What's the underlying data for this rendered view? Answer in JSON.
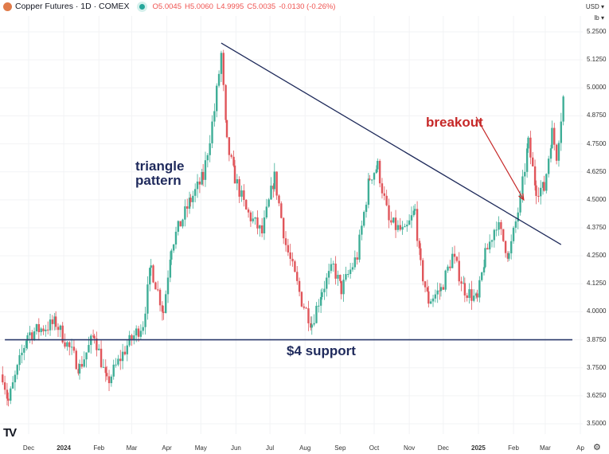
{
  "header": {
    "symbol": "Copper Futures · 1D · COMEX",
    "open": "O5.0045",
    "high": "H5.0060",
    "low": "L4.9995",
    "close": "C5.0035",
    "change": "-0.0130 (-0.26%)"
  },
  "units": {
    "currency": "USD ▾",
    "unit": "lb ▾"
  },
  "colors": {
    "up": "#3fae97",
    "down": "#e0555a",
    "trendline": "#1e2a5a",
    "support": "#2b3a6b",
    "annotation_blue": "#1f2a5c",
    "annotation_red": "#c62828"
  },
  "chart_data": {
    "type": "candlestick",
    "title": "Copper Futures · 1D · COMEX",
    "ylim": [
      3.5,
      5.25
    ],
    "y_ticks": [
      "5.2500",
      "5.1250",
      "5.0000",
      "4.8750",
      "4.7500",
      "4.6250",
      "4.5000",
      "4.3750",
      "4.2500",
      "4.1250",
      "4.0000",
      "3.8750",
      "3.7500",
      "3.6250",
      "3.5000"
    ],
    "x_ticks": [
      {
        "label": "Dec",
        "date": "2023-12-01"
      },
      {
        "label": "2024",
        "date": "2024-01-01",
        "year": true
      },
      {
        "label": "Feb",
        "date": "2024-02-01"
      },
      {
        "label": "Mar",
        "date": "2024-03-01"
      },
      {
        "label": "Apr",
        "date": "2024-04-01"
      },
      {
        "label": "May",
        "date": "2024-05-01"
      },
      {
        "label": "Jun",
        "date": "2024-06-01"
      },
      {
        "label": "Jul",
        "date": "2024-07-01"
      },
      {
        "label": "Aug",
        "date": "2024-08-01"
      },
      {
        "label": "Sep",
        "date": "2024-09-01"
      },
      {
        "label": "Oct",
        "date": "2024-10-01"
      },
      {
        "label": "Nov",
        "date": "2024-11-01"
      },
      {
        "label": "Dec",
        "date": "2024-12-01"
      },
      {
        "label": "2025",
        "date": "2025-01-01",
        "year": true
      },
      {
        "label": "Feb",
        "date": "2025-02-01"
      },
      {
        "label": "Mar",
        "date": "2025-03-01"
      },
      {
        "label": "Ap",
        "date": "2025-04-01"
      }
    ],
    "close_path": [
      [
        "2023-11-08",
        3.72
      ],
      [
        "2023-11-13",
        3.6
      ],
      [
        "2023-11-30",
        3.9
      ],
      [
        "2023-12-25",
        3.95
      ],
      [
        "2024-01-15",
        3.75
      ],
      [
        "2024-01-28",
        3.9
      ],
      [
        "2024-02-08",
        3.68
      ],
      [
        "2024-02-26",
        3.85
      ],
      [
        "2024-03-11",
        3.95
      ],
      [
        "2024-03-18",
        4.2
      ],
      [
        "2024-03-29",
        4.0
      ],
      [
        "2024-04-05",
        4.3
      ],
      [
        "2024-04-22",
        4.5
      ],
      [
        "2024-05-03",
        4.6
      ],
      [
        "2024-05-13",
        4.9
      ],
      [
        "2024-05-19",
        5.15
      ],
      [
        "2024-05-24",
        4.75
      ],
      [
        "2024-05-31",
        4.6
      ],
      [
        "2024-06-10",
        4.45
      ],
      [
        "2024-06-24",
        4.35
      ],
      [
        "2024-07-05",
        4.6
      ],
      [
        "2024-07-15",
        4.3
      ],
      [
        "2024-07-29",
        4.05
      ],
      [
        "2024-08-07",
        3.95
      ],
      [
        "2024-08-16",
        4.1
      ],
      [
        "2024-08-26",
        4.2
      ],
      [
        "2024-09-02",
        4.1
      ],
      [
        "2024-09-16",
        4.25
      ],
      [
        "2024-09-27",
        4.6
      ],
      [
        "2024-10-04",
        4.65
      ],
      [
        "2024-10-14",
        4.4
      ],
      [
        "2024-10-28",
        4.35
      ],
      [
        "2024-11-06",
        4.45
      ],
      [
        "2024-11-11",
        4.2
      ],
      [
        "2024-11-18",
        4.05
      ],
      [
        "2024-11-29",
        4.1
      ],
      [
        "2024-12-09",
        4.25
      ],
      [
        "2024-12-20",
        4.1
      ],
      [
        "2024-12-31",
        4.05
      ],
      [
        "2025-01-07",
        4.25
      ],
      [
        "2025-01-17",
        4.4
      ],
      [
        "2025-01-28",
        4.25
      ],
      [
        "2025-02-07",
        4.5
      ],
      [
        "2025-02-14",
        4.75
      ],
      [
        "2025-02-21",
        4.55
      ],
      [
        "2025-02-28",
        4.55
      ],
      [
        "2025-03-07",
        4.8
      ],
      [
        "2025-03-11",
        4.7
      ],
      [
        "2025-03-18",
        5.0
      ]
    ],
    "trendline": {
      "from": [
        "2024-05-19",
        5.2
      ],
      "to": [
        "2025-03-15",
        4.3
      ]
    },
    "support_line": {
      "price": 3.875,
      "from": "2023-11-10",
      "to": "2025-03-25"
    },
    "annotations": {
      "triangle": "triangle\npattern",
      "support": "$4 support",
      "breakout": "breakout"
    },
    "breakout_arrow": {
      "from": [
        "2024-12-30",
        4.87
      ],
      "to": [
        "2025-02-10",
        4.5
      ]
    }
  }
}
